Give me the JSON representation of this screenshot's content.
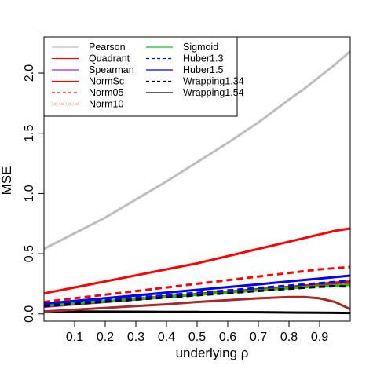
{
  "chart_data": {
    "type": "line",
    "title": "",
    "xlabel": "underlying ρ",
    "ylabel": "MSE",
    "xlim": [
      0.0,
      1.0
    ],
    "ylim": [
      0.0,
      2.2
    ],
    "xticks": [
      0.1,
      0.2,
      0.3,
      0.4,
      0.5,
      0.6,
      0.7,
      0.8,
      0.9
    ],
    "xtick_labels": [
      "0.1",
      "0.2",
      "0.3",
      "0.4",
      "0.5",
      "0.6",
      "0.7",
      "0.8",
      "0.9"
    ],
    "yticks": [
      0.0,
      0.5,
      1.0,
      1.5,
      2.0
    ],
    "ytick_labels": [
      "0.0",
      "0.5",
      "1.0",
      "1.5",
      "2.0"
    ],
    "grid": false,
    "legend": "top-left, two columns, boxed",
    "x": [
      0.0,
      0.1,
      0.2,
      0.3,
      0.4,
      0.5,
      0.6,
      0.7,
      0.8,
      0.85,
      0.9,
      0.95,
      1.0
    ],
    "series": [
      {
        "name": "Pearson",
        "color": "#bebebe",
        "dash": "solid",
        "values": [
          0.54,
          0.67,
          0.8,
          0.95,
          1.1,
          1.26,
          1.42,
          1.59,
          1.78,
          1.87,
          1.97,
          2.07,
          2.18
        ]
      },
      {
        "name": "Quadrant",
        "color": "#ff0000",
        "dash": "solid",
        "values": [
          0.17,
          0.22,
          0.27,
          0.32,
          0.37,
          0.42,
          0.48,
          0.54,
          0.6,
          0.63,
          0.66,
          0.69,
          0.71
        ]
      },
      {
        "name": "Spearman",
        "color": "#a020f0",
        "dash": "solid",
        "values": [
          0.06,
          0.08,
          0.1,
          0.12,
          0.14,
          0.16,
          0.18,
          0.2,
          0.22,
          0.23,
          0.25,
          0.26,
          0.27
        ]
      },
      {
        "name": "NormSc",
        "color": "#ff0000",
        "dash": "solid",
        "values": [
          0.065,
          0.085,
          0.105,
          0.125,
          0.145,
          0.165,
          0.185,
          0.205,
          0.225,
          0.235,
          0.245,
          0.255,
          0.265
        ]
      },
      {
        "name": "Norm05",
        "color": "#ff0000",
        "dash": "dashed",
        "values": [
          0.1,
          0.13,
          0.16,
          0.19,
          0.22,
          0.25,
          0.28,
          0.31,
          0.34,
          0.355,
          0.37,
          0.38,
          0.39
        ]
      },
      {
        "name": "Norm10",
        "color": "#ff0000",
        "dash": "dotdash",
        "values": [
          0.075,
          0.093,
          0.111,
          0.129,
          0.147,
          0.165,
          0.183,
          0.201,
          0.219,
          0.227,
          0.235,
          0.242,
          0.248
        ]
      },
      {
        "name": "Sigmoid",
        "color": "#00cd00",
        "dash": "solid",
        "values": [
          0.07,
          0.088,
          0.106,
          0.124,
          0.142,
          0.16,
          0.178,
          0.196,
          0.214,
          0.222,
          0.23,
          0.236,
          0.242
        ]
      },
      {
        "name": "Huber1.3",
        "color": "#0000ff",
        "dash": "dashed",
        "values": [
          0.075,
          0.095,
          0.115,
          0.135,
          0.155,
          0.175,
          0.195,
          0.215,
          0.235,
          0.245,
          0.255,
          0.265,
          0.275
        ]
      },
      {
        "name": "Huber1.5",
        "color": "#0000ff",
        "dash": "solid",
        "values": [
          0.085,
          0.108,
          0.131,
          0.154,
          0.177,
          0.2,
          0.223,
          0.246,
          0.27,
          0.282,
          0.294,
          0.306,
          0.318
        ]
      },
      {
        "name": "Wrapping1.34",
        "color": "#000000",
        "dash": "dashed",
        "values": [
          0.065,
          0.083,
          0.101,
          0.119,
          0.137,
          0.155,
          0.173,
          0.191,
          0.209,
          0.217,
          0.225,
          0.23,
          0.228
        ]
      },
      {
        "name": "Wrapping1.54",
        "color": "#000000",
        "dash": "solid",
        "values": [
          0.02,
          0.02,
          0.019,
          0.018,
          0.017,
          0.016,
          0.015,
          0.014,
          0.012,
          0.011,
          0.01,
          0.009,
          0.008
        ]
      },
      {
        "name": "",
        "color": "#a52a2a",
        "dash": "solid",
        "values": [
          0.02,
          0.035,
          0.05,
          0.065,
          0.08,
          0.1,
          0.115,
          0.13,
          0.14,
          0.14,
          0.13,
          0.1,
          0.04
        ]
      }
    ]
  }
}
